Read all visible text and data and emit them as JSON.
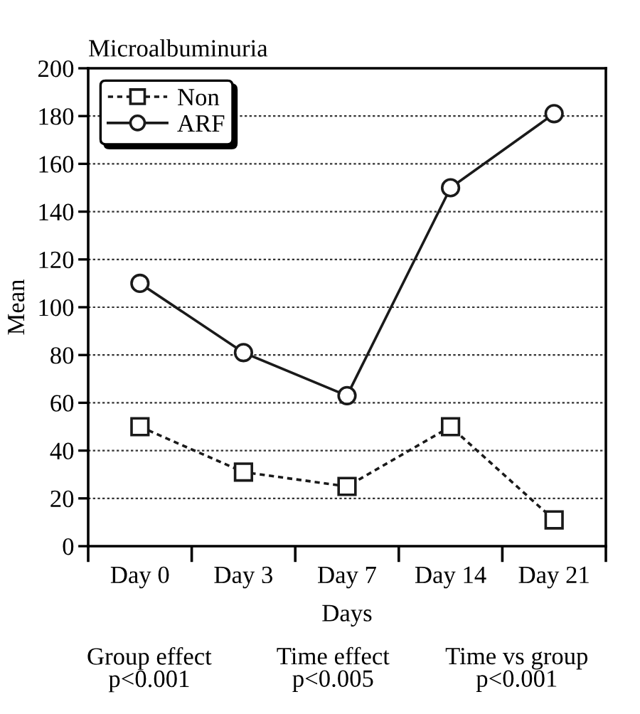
{
  "chart_data": {
    "type": "line",
    "title": "Microalbuminuria",
    "xlabel": "Days",
    "ylabel": "Mean",
    "categories": [
      "Day 0",
      "Day 3",
      "Day 7",
      "Day 14",
      "Day 21"
    ],
    "series": [
      {
        "name": "Non",
        "color": "#1a1a1a",
        "values": [
          50,
          31,
          25,
          50,
          11
        ],
        "marker": "square",
        "line_style": "dashed"
      },
      {
        "name": "ARF",
        "color": "#1a1a1a",
        "values": [
          110,
          81,
          63,
          150,
          181
        ],
        "marker": "circle",
        "line_style": "solid"
      }
    ],
    "ylim": [
      0,
      200
    ],
    "yticks": [
      0,
      20,
      40,
      60,
      80,
      100,
      120,
      140,
      160,
      180,
      200
    ],
    "grid": "y",
    "legend": "top left",
    "annotations": [
      "Group effect\np<0.001",
      "Time effect\np<0.005",
      "Time vs group\np<0.001"
    ]
  }
}
